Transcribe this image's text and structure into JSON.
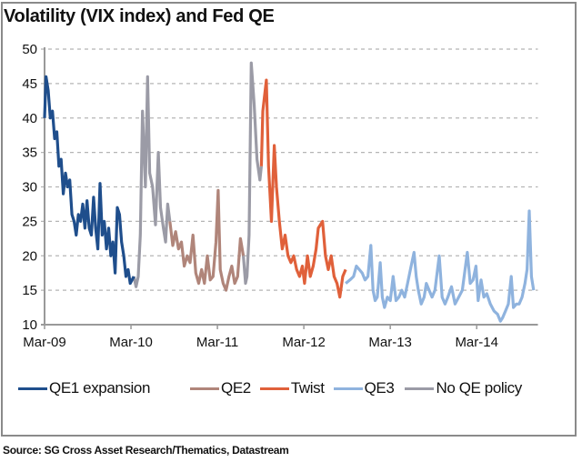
{
  "chart_data": {
    "type": "line",
    "title": "Volatility (VIX index) and Fed QE",
    "xlabel": "",
    "ylabel": "",
    "x_unit": "months since Mar-09",
    "xlim": [
      0,
      68.5
    ],
    "ylim": [
      10,
      50
    ],
    "yticks": [
      10,
      15,
      20,
      25,
      30,
      35,
      40,
      45,
      50
    ],
    "xticks": [
      {
        "value": 0,
        "label": "Mar-09"
      },
      {
        "value": 12,
        "label": "Mar-10"
      },
      {
        "value": 24,
        "label": "Mar-11"
      },
      {
        "value": 36,
        "label": "Mar-12"
      },
      {
        "value": 48,
        "label": "Mar-13"
      },
      {
        "value": 60,
        "label": "Mar-14"
      }
    ],
    "grid": "horizontal dashed",
    "legend_position": "bottom",
    "series": [
      {
        "name": "QE1 expansion",
        "color": "#1f4e8c",
        "segments": [
          [
            [
              0,
              40
            ],
            [
              0.2,
              46
            ],
            [
              0.5,
              44
            ],
            [
              0.8,
              40
            ],
            [
              1.1,
              41
            ],
            [
              1.4,
              37
            ],
            [
              1.7,
              38
            ],
            [
              2,
              33
            ],
            [
              2.3,
              34
            ],
            [
              2.6,
              29
            ],
            [
              2.9,
              32
            ],
            [
              3.2,
              30
            ],
            [
              3.5,
              31
            ],
            [
              3.8,
              26
            ],
            [
              4.1,
              25
            ],
            [
              4.4,
              23
            ],
            [
              4.7,
              26
            ],
            [
              5,
              25
            ],
            [
              5.3,
              27.5
            ],
            [
              5.6,
              24
            ],
            [
              5.9,
              28
            ],
            [
              6.2,
              24
            ],
            [
              6.5,
              23
            ],
            [
              6.8,
              28.5
            ],
            [
              7.1,
              24
            ],
            [
              7.4,
              21
            ],
            [
              7.7,
              30.5
            ],
            [
              8,
              23
            ],
            [
              8.3,
              25
            ],
            [
              8.6,
              21
            ],
            [
              8.9,
              24
            ],
            [
              9.2,
              20
            ],
            [
              9.5,
              22
            ],
            [
              9.8,
              17.5
            ],
            [
              10.1,
              27
            ],
            [
              10.4,
              26
            ],
            [
              10.7,
              22
            ],
            [
              11,
              20
            ],
            [
              11.3,
              17
            ],
            [
              11.6,
              18
            ],
            [
              11.9,
              16
            ],
            [
              12.4,
              17
            ]
          ]
        ]
      },
      {
        "name": "QE2",
        "color": "#b0857a",
        "segments": [
          [
            [
              17.4,
              25
            ],
            [
              17.8,
              21.5
            ],
            [
              18.2,
              23.5
            ],
            [
              18.6,
              21
            ],
            [
              19,
              22
            ],
            [
              19.4,
              18.5
            ],
            [
              19.8,
              20
            ],
            [
              20.2,
              19
            ],
            [
              20.6,
              23
            ],
            [
              21,
              17.5
            ],
            [
              21.4,
              16
            ],
            [
              21.8,
              18
            ],
            [
              22.2,
              16
            ],
            [
              22.6,
              20
            ],
            [
              23,
              16.5
            ],
            [
              23.4,
              17
            ],
            [
              23.8,
              22
            ],
            [
              24.1,
              29.5
            ],
            [
              24.4,
              18
            ],
            [
              24.8,
              16
            ],
            [
              25.2,
              15
            ],
            [
              25.6,
              17
            ],
            [
              26,
              18.5
            ],
            [
              26.4,
              16
            ],
            [
              26.8,
              17
            ],
            [
              27.2,
              22.5
            ],
            [
              27.6,
              20
            ]
          ]
        ]
      },
      {
        "name": "Twist",
        "color": "#e0603a",
        "segments": [
          [
            [
              30.1,
              33
            ],
            [
              30.3,
              41
            ],
            [
              30.8,
              45.5
            ],
            [
              31.1,
              33
            ],
            [
              31.5,
              25
            ],
            [
              31.9,
              36
            ],
            [
              32.2,
              30
            ],
            [
              32.6,
              25
            ],
            [
              33,
              21
            ],
            [
              33.4,
              23
            ],
            [
              33.8,
              20
            ],
            [
              34.2,
              19
            ],
            [
              34.6,
              20
            ],
            [
              35,
              18
            ],
            [
              35.4,
              17
            ],
            [
              35.8,
              18.5
            ],
            [
              36.1,
              16
            ],
            [
              36.5,
              20
            ],
            [
              36.9,
              17
            ],
            [
              37.3,
              18.5
            ],
            [
              37.7,
              21
            ],
            [
              38,
              24
            ],
            [
              38.6,
              25
            ],
            [
              39,
              20
            ],
            [
              39.4,
              18
            ],
            [
              39.8,
              20
            ],
            [
              40.2,
              17
            ],
            [
              40.6,
              16
            ],
            [
              41,
              14
            ],
            [
              41.4,
              17
            ],
            [
              41.8,
              18
            ]
          ]
        ]
      },
      {
        "name": "QE3",
        "color": "#8fb3de",
        "segments": [
          [
            [
              41.8,
              16
            ],
            [
              42.4,
              16.5
            ],
            [
              42.9,
              17
            ],
            [
              43.3,
              18.5
            ],
            [
              43.7,
              18
            ],
            [
              44.1,
              17.5
            ],
            [
              44.5,
              16.5
            ],
            [
              44.9,
              17
            ],
            [
              45.3,
              21.5
            ],
            [
              45.6,
              15
            ],
            [
              45.9,
              13.5
            ],
            [
              46.2,
              14
            ],
            [
              46.6,
              19
            ],
            [
              46.9,
              14
            ],
            [
              47.2,
              12.5
            ],
            [
              47.6,
              14
            ],
            [
              48,
              13.5
            ],
            [
              48.4,
              17
            ],
            [
              48.8,
              13.5
            ],
            [
              49.2,
              14
            ],
            [
              49.6,
              15
            ],
            [
              50,
              14
            ],
            [
              50.4,
              16
            ],
            [
              50.8,
              18
            ],
            [
              51.3,
              20.5
            ],
            [
              51.6,
              17
            ],
            [
              51.9,
              15
            ],
            [
              52.3,
              13
            ],
            [
              52.7,
              14
            ],
            [
              53,
              16
            ],
            [
              53.4,
              15
            ],
            [
              53.8,
              14
            ],
            [
              54.2,
              15
            ],
            [
              54.8,
              20
            ],
            [
              55.2,
              14
            ],
            [
              55.6,
              13
            ],
            [
              56,
              14
            ],
            [
              56.5,
              15.5
            ],
            [
              57,
              13
            ],
            [
              57.5,
              14
            ],
            [
              58,
              15
            ],
            [
              58.7,
              20.5
            ],
            [
              59.1,
              16
            ],
            [
              59.5,
              16.5
            ],
            [
              59.9,
              18.5
            ],
            [
              60.2,
              13.5
            ],
            [
              60.6,
              16.5
            ],
            [
              61,
              14
            ],
            [
              61.4,
              14.5
            ],
            [
              61.9,
              13
            ],
            [
              62.4,
              12
            ],
            [
              62.9,
              11.5
            ],
            [
              63.3,
              10.5
            ],
            [
              63.6,
              11
            ],
            [
              64,
              12
            ],
            [
              64.4,
              13
            ],
            [
              64.8,
              17
            ],
            [
              65.1,
              12.5
            ],
            [
              65.5,
              13
            ],
            [
              65.9,
              13
            ],
            [
              66.3,
              14
            ],
            [
              66.7,
              16
            ],
            [
              67,
              18
            ],
            [
              67.3,
              26.5
            ],
            [
              67.6,
              17
            ],
            [
              67.9,
              15
            ]
          ]
        ]
      },
      {
        "name": "No QE policy",
        "color": "#9b9ba6",
        "segments": [
          [
            [
              12.4,
              17
            ],
            [
              12.7,
              15.5
            ],
            [
              13,
              17
            ],
            [
              13.3,
              23
            ],
            [
              13.6,
              41
            ],
            [
              14,
              30
            ],
            [
              14.3,
              46
            ],
            [
              14.6,
              32
            ],
            [
              15,
              30
            ],
            [
              15.4,
              24.5
            ],
            [
              15.8,
              35
            ],
            [
              16.1,
              27
            ],
            [
              16.5,
              24
            ],
            [
              16.8,
              22
            ],
            [
              17.1,
              27.5
            ],
            [
              17.4,
              25
            ]
          ],
          [
            [
              27.6,
              20
            ],
            [
              27.9,
              16
            ],
            [
              28.1,
              17
            ],
            [
              28.4,
              23
            ],
            [
              28.7,
              48
            ],
            [
              29.1,
              42
            ],
            [
              29.5,
              34
            ],
            [
              29.9,
              31
            ],
            [
              30.1,
              33
            ]
          ]
        ]
      }
    ]
  },
  "source": "Source: SG Cross Asset Research/Thematics, Datastream"
}
